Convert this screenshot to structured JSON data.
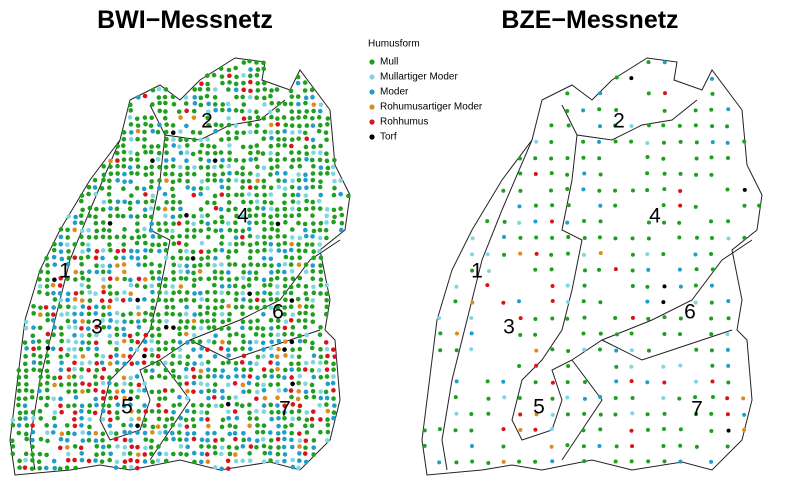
{
  "maps": [
    {
      "title": "BWI−Messnetz",
      "regions": [
        "1",
        "2",
        "3",
        "4",
        "5",
        "6",
        "7"
      ]
    },
    {
      "title": "BZE−Messnetz",
      "regions": [
        "1",
        "2",
        "3",
        "4",
        "5",
        "6",
        "7"
      ]
    }
  ],
  "legend": {
    "title": "Humusform",
    "items": [
      {
        "label": "Mull",
        "color": "#1f9e1f"
      },
      {
        "label": "Mullartiger Moder",
        "color": "#7fd6e0"
      },
      {
        "label": "Moder",
        "color": "#1e9ec8"
      },
      {
        "label": "Rohumusartiger Moder",
        "color": "#e08a1e"
      },
      {
        "label": "Rohhumus",
        "color": "#d8141a"
      },
      {
        "label": "Torf",
        "color": "#000000"
      }
    ]
  }
}
